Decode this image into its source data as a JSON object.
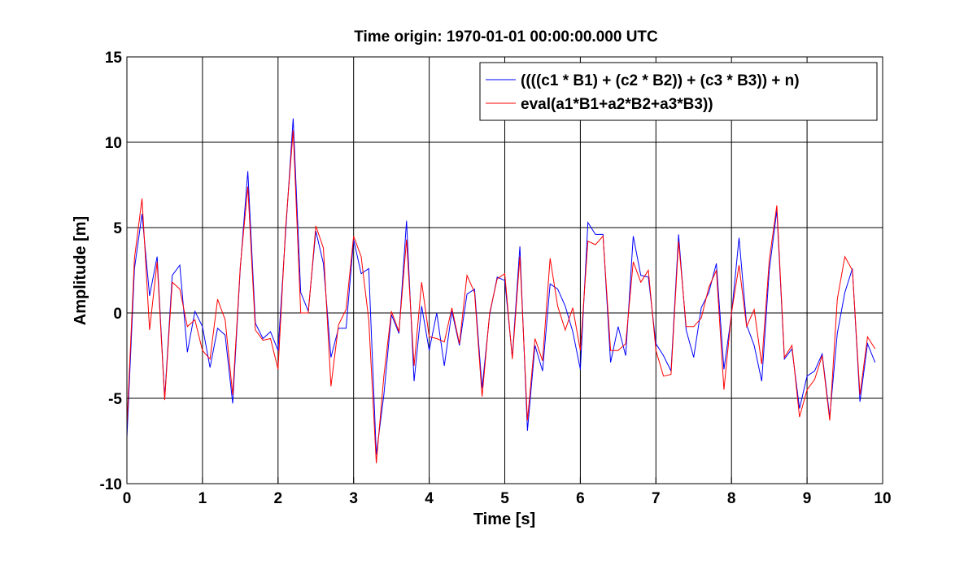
{
  "chart_data": {
    "type": "line",
    "title": "Time origin: 1970-01-01 00:00:00.000 UTC",
    "xlabel": "Time  [s]",
    "ylabel": "Amplitude  [m]",
    "xlim": [
      0,
      10
    ],
    "ylim": [
      -10,
      15
    ],
    "xticks": [
      0,
      1,
      2,
      3,
      4,
      5,
      6,
      7,
      8,
      9,
      10
    ],
    "yticks": [
      -10,
      -5,
      0,
      5,
      10,
      15
    ],
    "xtick_labels": [
      "0",
      "1",
      "2",
      "3",
      "4",
      "5",
      "6",
      "7",
      "8",
      "9",
      "10"
    ],
    "ytick_labels": [
      "-10",
      "-5",
      "0",
      "5",
      "10",
      "15"
    ],
    "grid": true,
    "legend_position": "top-right",
    "x": [
      0,
      0.1,
      0.2,
      0.3,
      0.4,
      0.5,
      0.6,
      0.7,
      0.8,
      0.9,
      1.0,
      1.1,
      1.2,
      1.3,
      1.4,
      1.5,
      1.6,
      1.7,
      1.8,
      1.9,
      2.0,
      2.1,
      2.2,
      2.3,
      2.4,
      2.5,
      2.6,
      2.7,
      2.8,
      2.9,
      3.0,
      3.1,
      3.2,
      3.3,
      3.4,
      3.5,
      3.6,
      3.7,
      3.8,
      3.9,
      4.0,
      4.1,
      4.2,
      4.3,
      4.4,
      4.5,
      4.6,
      4.7,
      4.8,
      4.9,
      5.0,
      5.1,
      5.2,
      5.3,
      5.4,
      5.5,
      5.6,
      5.7,
      5.8,
      5.9,
      6.0,
      6.1,
      6.2,
      6.3,
      6.4,
      6.5,
      6.6,
      6.7,
      6.8,
      6.9,
      7.0,
      7.1,
      7.2,
      7.3,
      7.4,
      7.5,
      7.6,
      7.7,
      7.8,
      7.9,
      8.0,
      8.1,
      8.2,
      8.3,
      8.4,
      8.5,
      8.6,
      8.7,
      8.8,
      8.9,
      9.0,
      9.1,
      9.2,
      9.3,
      9.4,
      9.5,
      9.6,
      9.7,
      9.8,
      9.9
    ],
    "series": [
      {
        "name": "((((c1 * B1) + (c2 * B2)) + (c3 * B3)) + n)",
        "color": "#0000ff",
        "values": [
          -7.3,
          2.6,
          5.8,
          1.0,
          3.3,
          -5.0,
          2.2,
          2.8,
          -2.3,
          0.1,
          -0.8,
          -3.2,
          -0.9,
          -1.3,
          -5.3,
          2.6,
          8.3,
          -0.6,
          -1.5,
          -1.1,
          -2.2,
          4.7,
          11.4,
          1.2,
          0.1,
          4.8,
          2.9,
          -2.6,
          -0.9,
          -0.9,
          4.3,
          2.3,
          2.6,
          -8.3,
          -4.8,
          -0.1,
          -1.2,
          5.4,
          -4.0,
          0.4,
          -2.2,
          0.0,
          -3.1,
          0.1,
          -1.9,
          1.1,
          1.4,
          -4.4,
          -0.1,
          2.1,
          1.9,
          -2.6,
          3.9,
          -6.9,
          -1.9,
          -3.4,
          1.7,
          1.4,
          0.4,
          -1.1,
          -3.3,
          5.3,
          4.6,
          4.6,
          -2.9,
          -0.8,
          -2.5,
          4.5,
          2.2,
          2.1,
          -1.8,
          -2.5,
          -3.4,
          4.6,
          -1.0,
          -2.6,
          0.3,
          1.2,
          2.9,
          -3.3,
          -0.1,
          4.4,
          -0.7,
          -1.9,
          -4.0,
          2.5,
          6.0,
          -2.7,
          -2.1,
          -5.6,
          -3.7,
          -3.4,
          -2.4,
          -6.1,
          -1.2,
          1.2,
          2.6,
          -5.2,
          -1.8,
          -2.9
        ]
      },
      {
        "name": "eval(a1*B1+a2*B2+a3*B3))",
        "color": "#ff0000",
        "values": [
          -6.6,
          3.2,
          6.7,
          -1.0,
          3.0,
          -5.1,
          1.8,
          1.4,
          -0.8,
          -0.4,
          -2.2,
          -2.7,
          0.8,
          -0.4,
          -4.8,
          2.7,
          7.4,
          -1.0,
          -1.6,
          -1.5,
          -3.3,
          5.0,
          10.7,
          0.0,
          0.0,
          5.1,
          3.8,
          -4.3,
          -0.7,
          0.2,
          4.5,
          3.3,
          -0.4,
          -8.8,
          -3.7,
          0.1,
          -1.1,
          4.3,
          -3.1,
          1.8,
          -1.4,
          -1.5,
          -1.7,
          0.3,
          -1.8,
          2.2,
          1.2,
          -4.9,
          0.0,
          2.0,
          2.3,
          -2.7,
          3.3,
          -6.3,
          -1.5,
          -2.8,
          3.2,
          0.4,
          -1.0,
          0.3,
          -2.2,
          4.2,
          4.0,
          4.5,
          -2.2,
          -2.2,
          -1.8,
          3.0,
          1.8,
          2.5,
          -2.2,
          -3.7,
          -3.6,
          4.2,
          -0.8,
          -0.8,
          -0.3,
          1.5,
          2.5,
          -4.5,
          0.0,
          2.8,
          -0.8,
          0.2,
          -3.0,
          3.1,
          6.3,
          -2.6,
          -1.9,
          -6.1,
          -4.5,
          -3.9,
          -2.5,
          -6.3,
          0.8,
          3.3,
          2.5,
          -4.8,
          -1.4,
          -2.1
        ]
      }
    ]
  }
}
